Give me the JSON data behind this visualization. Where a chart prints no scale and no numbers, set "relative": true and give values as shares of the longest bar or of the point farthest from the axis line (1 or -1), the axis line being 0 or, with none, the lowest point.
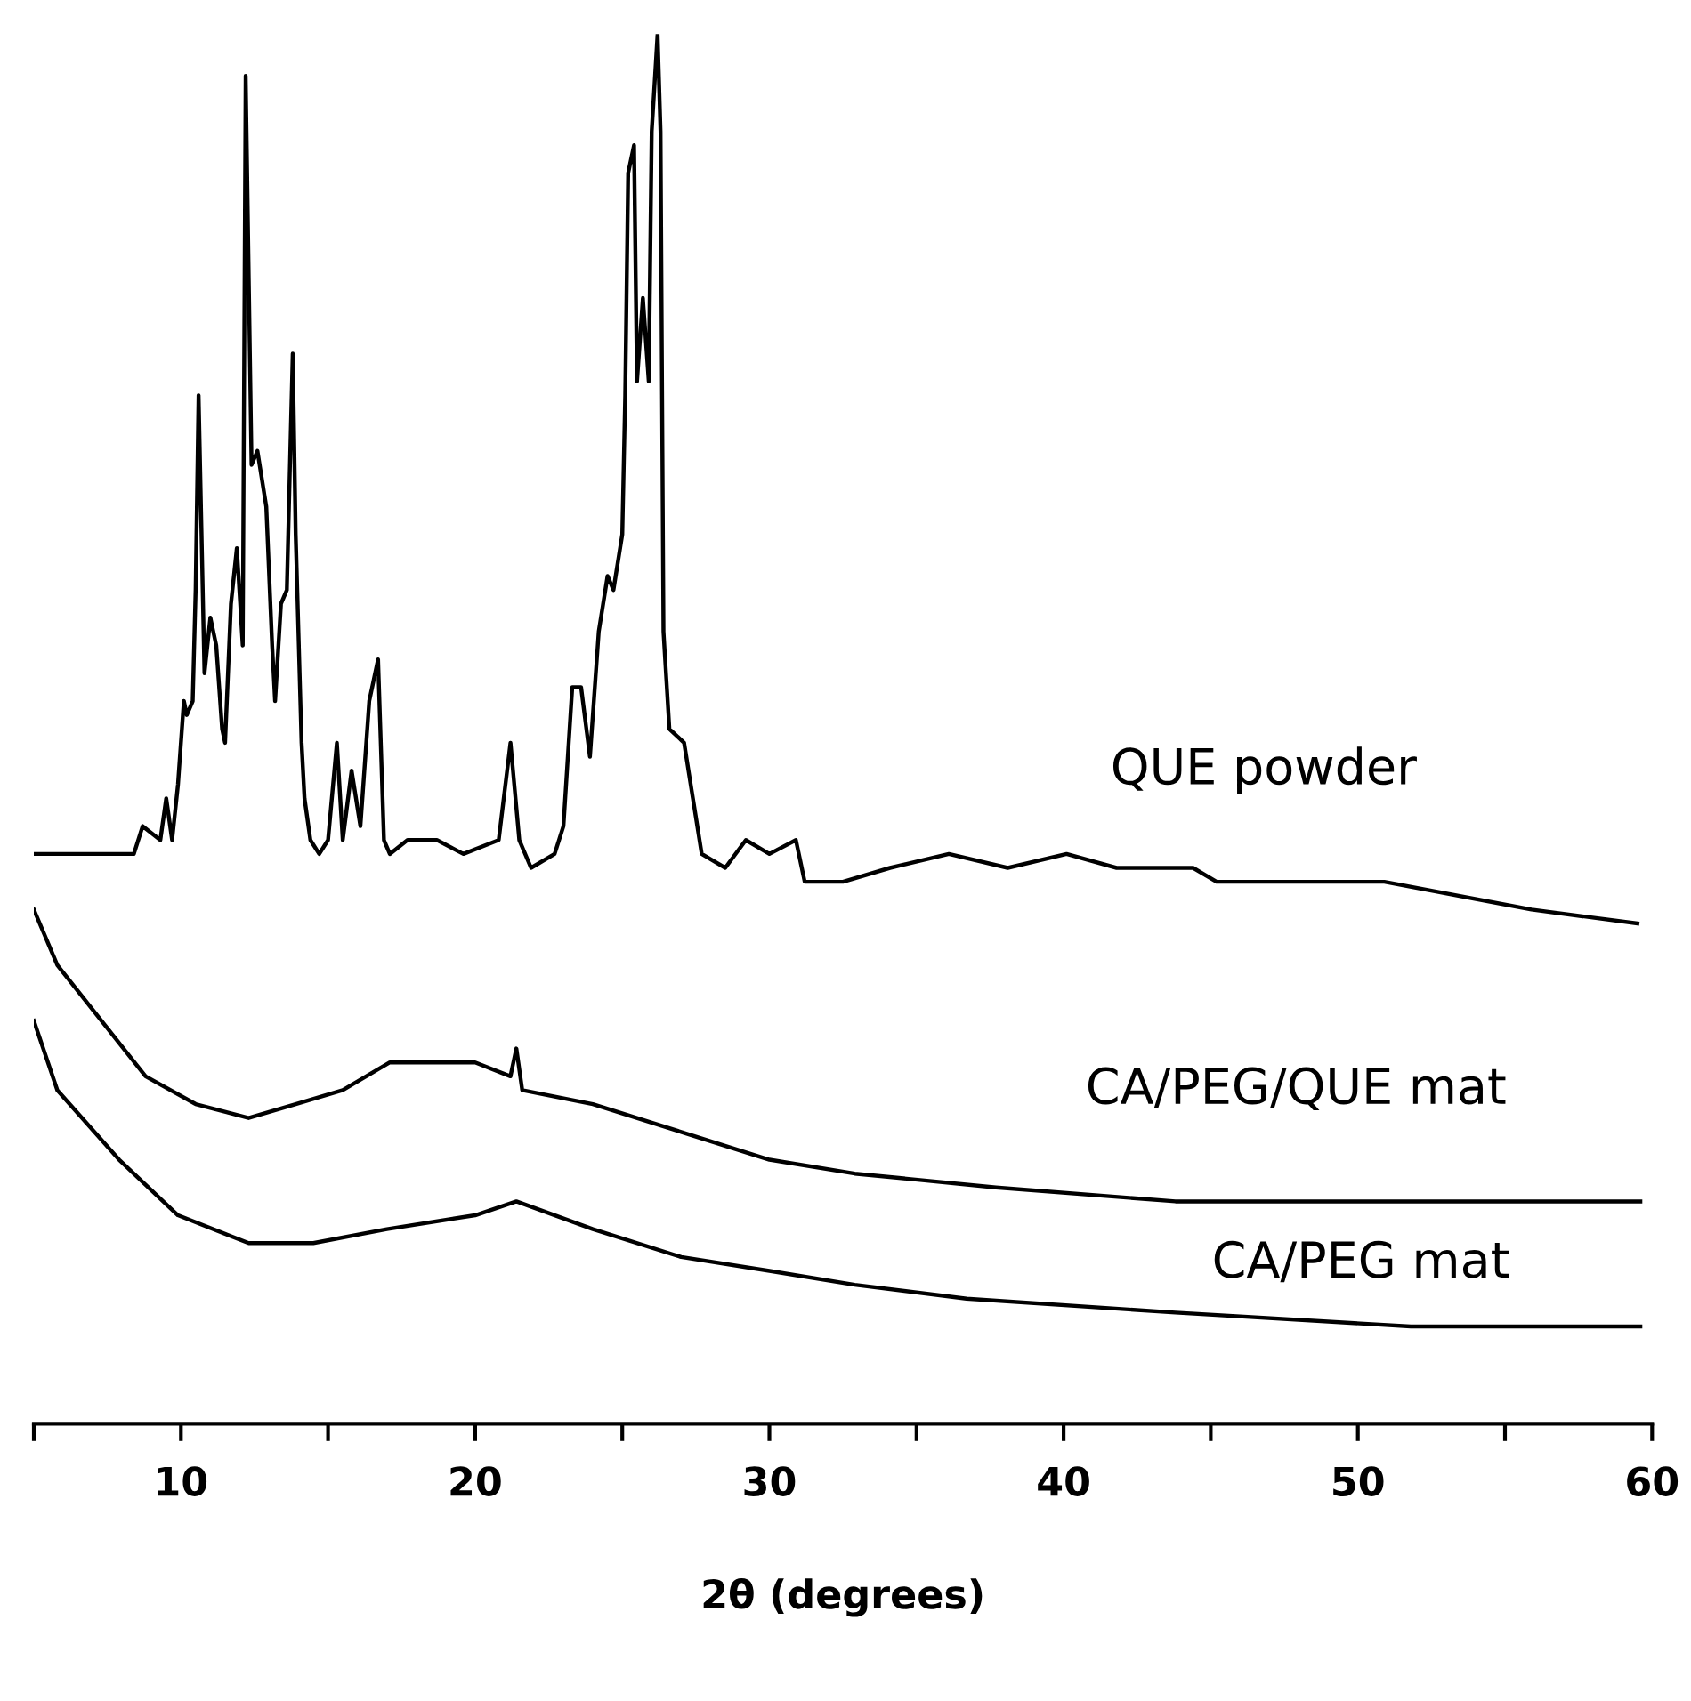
{
  "chart_data": {
    "type": "line",
    "relative": true,
    "xlabel": "2θ (degrees)",
    "tick_labels": "x",
    "xlim": [
      5,
      60
    ],
    "xticks": [
      {
        "value": 5,
        "label": null
      },
      10,
      {
        "value": 15,
        "label": null
      },
      20,
      {
        "value": 25,
        "label": null
      },
      30,
      {
        "value": 35,
        "label": null
      },
      40,
      {
        "value": 45,
        "label": null
      },
      50,
      {
        "value": 55,
        "label": null
      },
      60
    ],
    "grid": false,
    "legend": false,
    "line_style": "solid",
    "series": [
      {
        "name": "QUE powder",
        "color": "#000000",
        "x": [
          5.0,
          5.6,
          6.5,
          7.5,
          8.4,
          8.7,
          9.3,
          9.5,
          9.7,
          9.9,
          10.1,
          10.2,
          10.4,
          10.5,
          10.6,
          10.8,
          11.0,
          11.2,
          11.4,
          11.5,
          11.7,
          11.9,
          12.1,
          12.2,
          12.4,
          12.6,
          12.9,
          13.1,
          13.2,
          13.4,
          13.6,
          13.8,
          13.9,
          14.1,
          14.2,
          14.4,
          14.7,
          15.0,
          15.3,
          15.5,
          15.8,
          16.1,
          16.4,
          16.7,
          16.9,
          17.1,
          17.7,
          18.7,
          19.6,
          20.8,
          21.2,
          21.5,
          21.9,
          22.7,
          23.0,
          23.3,
          23.6,
          23.9,
          24.2,
          24.5,
          24.7,
          25.0,
          25.1,
          25.2,
          25.4,
          25.5,
          25.7,
          25.9,
          26.0,
          26.2,
          26.3,
          26.4,
          26.6,
          27.1,
          27.4,
          27.7,
          28.5,
          29.2,
          30.0,
          30.9,
          31.2,
          32.5,
          34.1,
          36.1,
          38.1,
          40.1,
          41.8,
          44.4,
          45.2,
          48.8,
          50.9,
          55.9,
          59.5
        ],
        "values": [
          0.41,
          0.41,
          0.41,
          0.41,
          0.41,
          0.43,
          0.42,
          0.45,
          0.42,
          0.46,
          0.52,
          0.51,
          0.52,
          0.6,
          0.74,
          0.54,
          0.58,
          0.56,
          0.5,
          0.49,
          0.59,
          0.63,
          0.56,
          0.97,
          0.69,
          0.7,
          0.66,
          0.56,
          0.52,
          0.59,
          0.6,
          0.77,
          0.64,
          0.49,
          0.45,
          0.42,
          0.41,
          0.42,
          0.49,
          0.42,
          0.47,
          0.43,
          0.52,
          0.55,
          0.42,
          0.41,
          0.42,
          0.42,
          0.41,
          0.42,
          0.49,
          0.42,
          0.4,
          0.41,
          0.43,
          0.53,
          0.53,
          0.48,
          0.57,
          0.61,
          0.6,
          0.64,
          0.74,
          0.9,
          0.92,
          0.75,
          0.81,
          0.75,
          0.93,
          1.0,
          0.93,
          0.57,
          0.5,
          0.49,
          0.45,
          0.41,
          0.4,
          0.42,
          0.41,
          0.42,
          0.39,
          0.39,
          0.4,
          0.41,
          0.4,
          0.41,
          0.4,
          0.4,
          0.39,
          0.39,
          0.39,
          0.37,
          0.36
        ]
      },
      {
        "name": "CA/PEG/QUE mat",
        "color": "#000000",
        "x": [
          5.0,
          5.8,
          7.3,
          8.8,
          10.5,
          12.3,
          13.9,
          15.5,
          17.1,
          18.5,
          20.0,
          21.2,
          21.4,
          21.6,
          24.0,
          27.0,
          30.0,
          32.9,
          37.7,
          43.8,
          49.8,
          59.6
        ],
        "values": [
          0.37,
          0.33,
          0.29,
          0.25,
          0.23,
          0.22,
          0.23,
          0.24,
          0.26,
          0.26,
          0.26,
          0.25,
          0.27,
          0.24,
          0.23,
          0.21,
          0.19,
          0.18,
          0.17,
          0.16,
          0.16,
          0.16
        ]
      },
      {
        "name": "CA/PEG mat",
        "color": "#000000",
        "x": [
          5.0,
          5.8,
          7.9,
          9.9,
          12.3,
          14.5,
          17.0,
          20.0,
          21.4,
          24.0,
          27.0,
          30.0,
          32.9,
          36.7,
          43.8,
          51.8,
          59.6
        ],
        "values": [
          0.29,
          0.24,
          0.19,
          0.15,
          0.13,
          0.13,
          0.14,
          0.15,
          0.16,
          0.14,
          0.12,
          0.11,
          0.1,
          0.09,
          0.08,
          0.07,
          0.07
        ]
      }
    ]
  }
}
